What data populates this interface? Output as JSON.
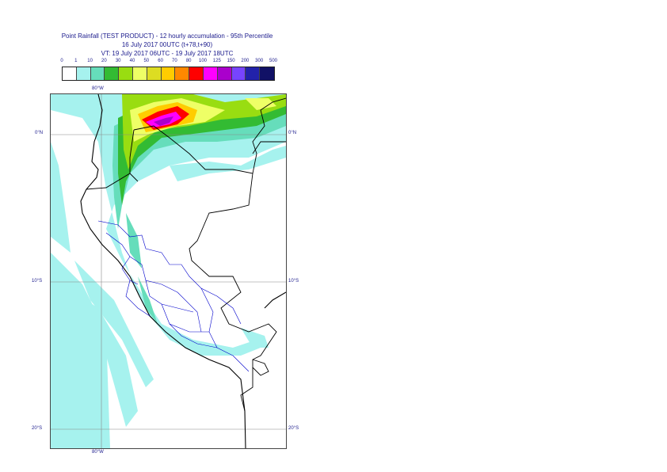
{
  "title": {
    "line1": "Point Rainfall (TEST PRODUCT) - 12 hourly accumulation - 95th Percentile",
    "line2": "16 July 2017 00UTC (t+78,t+90)",
    "line3": "VT: 19 July 2017 06UTC - 19 July 2017 18UTC"
  },
  "legend": {
    "thresholds": [
      "0",
      "1",
      "10",
      "20",
      "30",
      "40",
      "50",
      "60",
      "70",
      "80",
      "100",
      "125",
      "150",
      "200",
      "300",
      "500"
    ],
    "colors": [
      "#ffffff",
      "#a6f2ee",
      "#66ddbb",
      "#33bb33",
      "#99dd11",
      "#eeff66",
      "#dddd22",
      "#ffcc00",
      "#ff8800",
      "#ff0000",
      "#ff00ff",
      "#aa00cc",
      "#7744ff",
      "#2222aa",
      "#111166"
    ]
  },
  "map": {
    "lat_labels": {
      "top_left": "0°N",
      "top_right": "0°N",
      "mid_left": "10°S",
      "mid_right": "10°S",
      "bot_left": "20°S",
      "bot_right": "20°S"
    },
    "lon_labels": {
      "top": "80°W",
      "bottom": "80°W"
    },
    "colors": {
      "cyan": "#a6f2ee",
      "teal": "#66ddbb",
      "green": "#33bb33",
      "lime": "#99dd11",
      "yellow": "#eeff66",
      "olive": "#dddd22",
      "orange": "#ffcc00",
      "dark_orange": "#ff8800",
      "red": "#ff0000",
      "magenta": "#ff00ff",
      "purple": "#aa00cc",
      "coast": "#000000",
      "borders": "#0000cc",
      "grid": "#888888"
    }
  }
}
